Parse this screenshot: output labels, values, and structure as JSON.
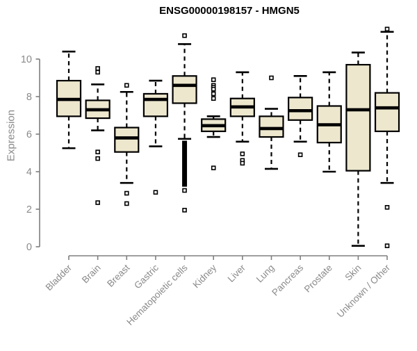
{
  "chart_data": {
    "type": "boxplot",
    "title": "ENSG00000198157 - HMGN5",
    "ylabel": "Expression",
    "ylim": [
      0,
      11.7
    ],
    "yticks": [
      0,
      2,
      4,
      6,
      8,
      10
    ],
    "grid": false,
    "legend": false,
    "categories": [
      "Bladder",
      "Brain",
      "Breast",
      "Gastric",
      "Hematopoietic cells",
      "Kidney",
      "Liver",
      "Lung",
      "Pancreas",
      "Prostate",
      "Skin",
      "Unknown / Other"
    ],
    "series": [
      {
        "category": "Bladder",
        "whisker_low": 5.25,
        "q1": 6.95,
        "median": 7.85,
        "q3": 8.85,
        "whisker_high": 10.4,
        "outliers": []
      },
      {
        "category": "Brain",
        "whisker_low": 6.2,
        "q1": 6.85,
        "median": 7.3,
        "q3": 7.8,
        "whisker_high": 8.65,
        "outliers": [
          9.5,
          9.3,
          5.05,
          4.7,
          2.35
        ]
      },
      {
        "category": "Breast",
        "whisker_low": 3.4,
        "q1": 5.05,
        "median": 5.8,
        "q3": 6.35,
        "whisker_high": 8.25,
        "outliers": [
          8.6,
          2.85,
          2.3
        ]
      },
      {
        "category": "Gastric",
        "whisker_low": 5.35,
        "q1": 6.95,
        "median": 7.85,
        "q3": 8.15,
        "whisker_high": 8.85,
        "outliers": [
          2.9
        ]
      },
      {
        "category": "Hematopoietic cells",
        "whisker_low": 5.75,
        "q1": 7.65,
        "median": 8.6,
        "q3": 9.1,
        "whisker_high": 10.8,
        "outliers": [
          11.25,
          3.0,
          1.95
        ],
        "outlier_band": [
          3.2,
          5.65
        ]
      },
      {
        "category": "Kidney",
        "whisker_low": 5.85,
        "q1": 6.15,
        "median": 6.45,
        "q3": 6.8,
        "whisker_high": 6.95,
        "outliers": [
          8.9,
          8.6,
          8.5,
          8.4,
          8.15,
          7.9,
          4.2
        ]
      },
      {
        "category": "Liver",
        "whisker_low": 5.6,
        "q1": 6.95,
        "median": 7.45,
        "q3": 7.9,
        "whisker_high": 9.3,
        "outliers": [
          4.95,
          4.6,
          4.45
        ]
      },
      {
        "category": "Lung",
        "whisker_low": 4.15,
        "q1": 5.85,
        "median": 6.3,
        "q3": 6.95,
        "whisker_high": 7.35,
        "outliers": [
          9.0
        ]
      },
      {
        "category": "Pancreas",
        "whisker_low": 5.6,
        "q1": 6.75,
        "median": 7.25,
        "q3": 7.95,
        "whisker_high": 9.1,
        "outliers": [
          4.9
        ]
      },
      {
        "category": "Prostate",
        "whisker_low": 4.0,
        "q1": 5.55,
        "median": 6.5,
        "q3": 7.5,
        "whisker_high": 9.3,
        "outliers": []
      },
      {
        "category": "Skin",
        "whisker_low": 0.05,
        "q1": 4.05,
        "median": 7.3,
        "q3": 9.7,
        "whisker_high": 10.35,
        "outliers": []
      },
      {
        "category": "Unknown / Other",
        "whisker_low": 3.4,
        "q1": 6.15,
        "median": 7.4,
        "q3": 8.2,
        "whisker_high": 11.45,
        "outliers": [
          11.6,
          2.1,
          0.05
        ]
      }
    ],
    "colors": {
      "box_fill": "#EDE7CE",
      "box_border": "#000000",
      "median": "#000000",
      "whisker": "#000000",
      "axis": "#7f7f7f",
      "tick_label": "#8a8a8a",
      "title": "#000000",
      "background": "#ffffff",
      "outlier_fill": "#ffffff"
    }
  }
}
